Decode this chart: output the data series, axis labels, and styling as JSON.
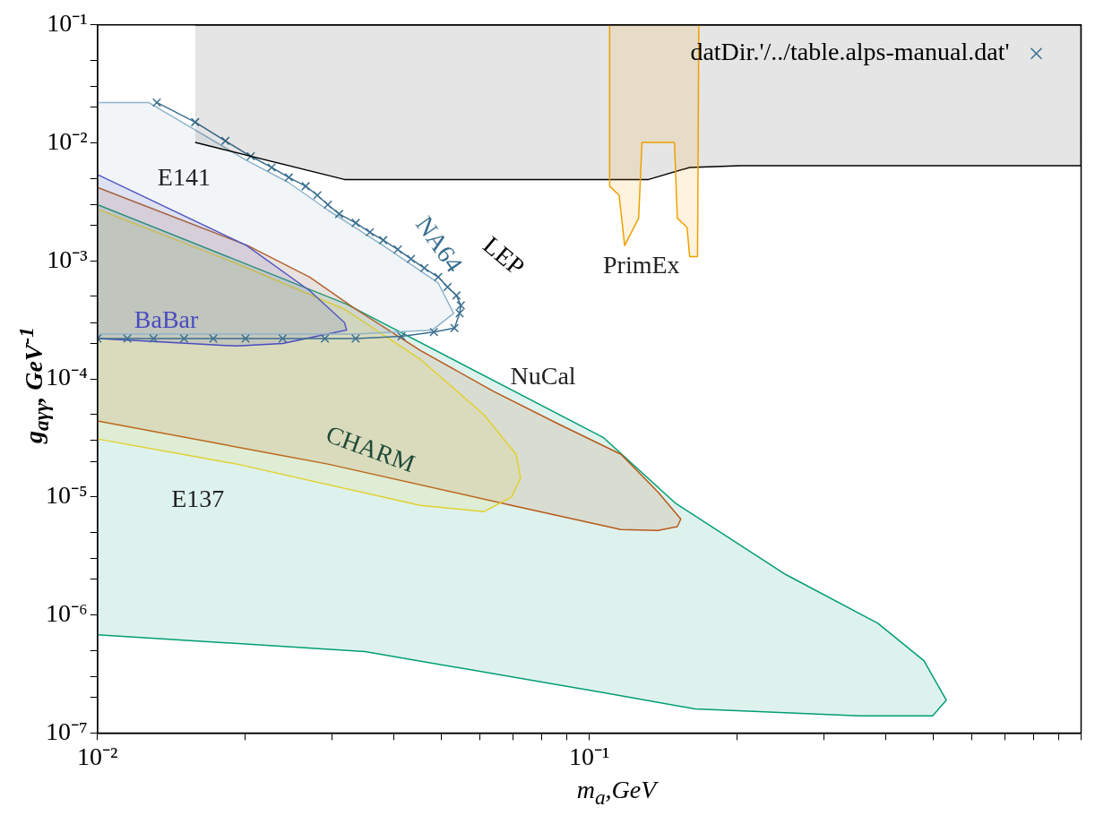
{
  "chart_data": {
    "type": "area",
    "xlabel": "m$_{a}$,GeV",
    "ylabel": "g$_{aγγ}$, GeV$^{-1}$",
    "log": "xy",
    "grid": false,
    "legend": "top right",
    "xlim": [
      0.01,
      1
    ],
    "ylim": [
      1e-07,
      0.1
    ],
    "xticks": [
      {
        "value": 0.01,
        "label": "10⁻²"
      },
      {
        "value": 0.02,
        "label": null
      },
      {
        "value": 0.03,
        "label": null
      },
      {
        "value": 0.04,
        "label": null
      },
      {
        "value": 0.05,
        "label": null
      },
      {
        "value": 0.06,
        "label": null
      },
      {
        "value": 0.07,
        "label": null
      },
      {
        "value": 0.08,
        "label": null
      },
      {
        "value": 0.09,
        "label": null
      },
      {
        "value": 0.1,
        "label": "10⁻¹"
      },
      {
        "value": 0.2,
        "label": null
      },
      {
        "value": 0.3,
        "label": null
      },
      {
        "value": 0.4,
        "label": null
      },
      {
        "value": 0.5,
        "label": null
      },
      {
        "value": 0.6,
        "label": null
      },
      {
        "value": 0.7,
        "label": null
      },
      {
        "value": 0.8,
        "label": null
      },
      {
        "value": 0.9,
        "label": null
      },
      {
        "value": 1,
        "label": null
      }
    ],
    "yticks": [
      {
        "value": 1e-07,
        "label": "10⁻⁷"
      },
      {
        "value": 2e-07,
        "label": null
      },
      {
        "value": 3e-07,
        "label": null
      },
      {
        "value": 5e-07,
        "label": null
      },
      {
        "value": 1e-06,
        "label": "10⁻⁶"
      },
      {
        "value": 2e-06,
        "label": null
      },
      {
        "value": 3e-06,
        "label": null
      },
      {
        "value": 5e-06,
        "label": null
      },
      {
        "value": 1e-05,
        "label": "10⁻⁵"
      },
      {
        "value": 2e-05,
        "label": null
      },
      {
        "value": 3e-05,
        "label": null
      },
      {
        "value": 5e-05,
        "label": null
      },
      {
        "value": 0.0001,
        "label": "10⁻⁴"
      },
      {
        "value": 0.0002,
        "label": null
      },
      {
        "value": 0.0003,
        "label": null
      },
      {
        "value": 0.0005,
        "label": null
      },
      {
        "value": 0.001,
        "label": "10⁻³"
      },
      {
        "value": 0.002,
        "label": null
      },
      {
        "value": 0.003,
        "label": null
      },
      {
        "value": 0.005,
        "label": null
      },
      {
        "value": 0.01,
        "label": "10⁻²"
      },
      {
        "value": 0.02,
        "label": null
      },
      {
        "value": 0.03,
        "label": null
      },
      {
        "value": 0.05,
        "label": null
      },
      {
        "value": 0.1,
        "label": "10⁻¹"
      }
    ],
    "series": [
      {
        "color": "#009e73",
        "x": [
          0.01,
          0.0321,
          0.1067,
          0.15,
          0.251,
          0.386,
          0.479,
          0.532,
          0.499,
          0.354,
          0.164,
          0.1067,
          0.035,
          0.01
        ],
        "values": [
          0.003,
          0.00043,
          3.2e-05,
          8.8e-06,
          2.2e-06,
          8.5e-07,
          4.1e-07,
          1.9e-07,
          1.4e-07,
          1.4e-07,
          1.6e-07,
          2.2e-07,
          4.9e-07,
          6.8e-07
        ]
      },
      {
        "color": "#b8581a",
        "x": [
          0.01,
          0.0202,
          0.027,
          0.0335,
          0.0453,
          0.0637,
          0.0861,
          0.116,
          0.138,
          0.1535,
          0.151,
          0.138,
          0.116,
          0.0695,
          0.0294,
          0.01
        ],
        "values": [
          0.0042,
          0.00135,
          0.00073,
          0.00039,
          0.000175,
          7.9e-05,
          4.2e-05,
          2.3e-05,
          1.1e-05,
          6.5e-06,
          5.6e-06,
          5.2e-06,
          5.3e-06,
          8.5e-06,
          1.9e-05,
          4.4e-05
        ]
      },
      {
        "color": "#e2d030",
        "x": [
          0.01,
          0.0192,
          0.0318,
          0.0453,
          0.061,
          0.071,
          0.0725,
          0.0695,
          0.061,
          0.0453,
          0.0192,
          0.01
        ],
        "values": [
          0.00275,
          0.00095,
          0.00039,
          0.000147,
          5e-05,
          2.3e-05,
          1.45e-05,
          1e-05,
          7.5e-06,
          8.5e-06,
          1.9e-05,
          3.1e-05
        ]
      },
      {
        "color": "#4b4bc0",
        "x": [
          0.01,
          0.0201,
          0.027,
          0.0318,
          0.0321,
          0.0238,
          0.0192,
          0.0125,
          0.01
        ],
        "values": [
          0.0054,
          0.00135,
          0.00056,
          0.0003,
          0.00026,
          0.0002,
          0.00019,
          0.00021,
          0.00022
        ]
      },
      {
        "color": "#8fb3c9",
        "x": [
          0.01,
          0.0127,
          0.0155,
          0.02,
          0.0245,
          0.0294,
          0.0381,
          0.0493,
          0.053,
          0.048,
          0.0335,
          0.01
        ],
        "values": [
          0.022,
          0.022,
          0.0135,
          0.0072,
          0.0046,
          0.0027,
          0.00135,
          0.00065,
          0.00036,
          0.00026,
          0.00024,
          0.00024
        ]
      },
      {
        "type": "line",
        "name": "datDir.'/../table.alps-manual.dat'",
        "color": "#3a6f8f",
        "marker": "cross",
        "x": [
          0.0132,
          0.0158,
          0.0182,
          0.0205,
          0.0226,
          0.0245,
          0.0265,
          0.028,
          0.0294,
          0.031,
          0.0335,
          0.0358,
          0.0381,
          0.0408,
          0.0434,
          0.0462,
          0.0493,
          0.0515,
          0.0537,
          0.0548,
          0.0545,
          0.0532,
          0.0483,
          0.0415,
          0.0335,
          0.029,
          0.0238,
          0.02,
          0.0172,
          0.015,
          0.013,
          0.0115,
          0.01
        ],
        "values": [
          0.022,
          0.015,
          0.0104,
          0.0077,
          0.0062,
          0.0051,
          0.0043,
          0.0036,
          0.003,
          0.0025,
          0.0021,
          0.00175,
          0.0015,
          0.00125,
          0.00104,
          0.00087,
          0.00073,
          0.0006,
          0.00051,
          0.00042,
          0.00036,
          0.00027,
          0.00025,
          0.00023,
          0.00022,
          0.00022,
          0.00022,
          0.00022,
          0.00022,
          0.00022,
          0.00022,
          0.00022,
          0.00022
        ]
      },
      {
        "color": "#000000",
        "x": [
          0.0158,
          0.0318,
          0.132,
          0.16,
          0.203,
          1,
          1,
          0.0158
        ],
        "values": [
          0.0101,
          0.0049,
          0.0049,
          0.0062,
          0.0064,
          0.0064,
          0.1,
          0.1
        ]
      },
      {
        "color": "#f0a000",
        "x": [
          0.11,
          0.11,
          0.115,
          0.118,
          0.126,
          0.128,
          0.149,
          0.151,
          0.158,
          0.16,
          0.166,
          0.167
        ],
        "values": [
          0.1,
          0.0043,
          0.0036,
          0.00135,
          0.0023,
          0.0101,
          0.0101,
          0.0023,
          0.00193,
          0.00109,
          0.00109,
          0.1
        ]
      }
    ],
    "annotations": [
      "E141",
      "BaBar",
      "NA64",
      "LEP",
      "PrimEx",
      "NuCal",
      "CHARM",
      "E137"
    ]
  }
}
